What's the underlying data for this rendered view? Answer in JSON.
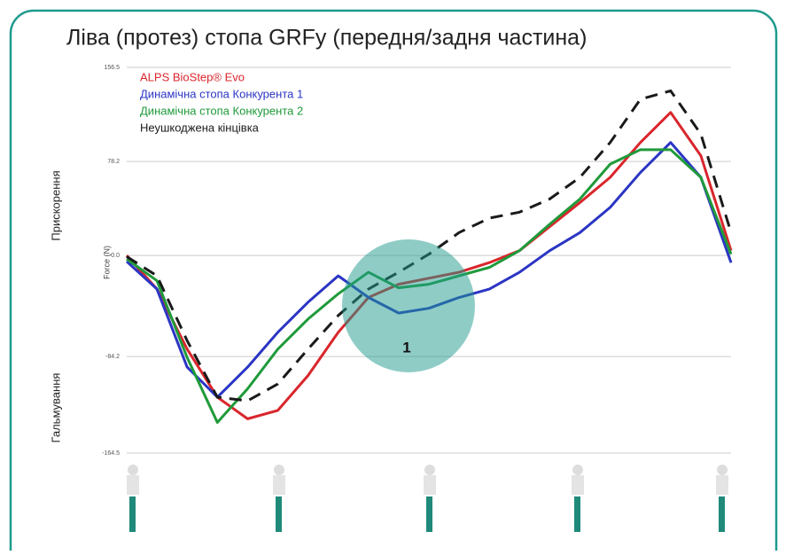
{
  "chart_data": {
    "type": "line",
    "title": "Ліва (протез) стопа GRFy (передня/задня частина)",
    "y_label": "Force (N)",
    "annotations": [
      "Прискорення",
      "Гальмування",
      "1"
    ],
    "x": [
      0,
      5,
      10,
      15,
      20,
      25,
      30,
      35,
      40,
      45,
      50,
      55,
      60,
      65,
      70,
      75,
      80,
      85,
      90,
      95,
      100
    ],
    "xlim": [
      0,
      100
    ],
    "ylim": [
      -164.5,
      156.5
    ],
    "yticks": [
      {
        "value": 156.5,
        "label": "156.5"
      },
      {
        "value": 78.2,
        "label": "78.2"
      },
      {
        "value": 0,
        "label": "0.0"
      },
      {
        "value": -84.2,
        "label": "-84.2"
      },
      {
        "value": -164.5,
        "label": "-164.5"
      }
    ],
    "grid": true,
    "legend": "upper left",
    "series": [
      {
        "name": "ALPS BioStep® Evo",
        "color": "#d9262c",
        "values": [
          0,
          -28,
          -78,
          -118,
          -136,
          -129,
          -100,
          -64,
          -35,
          -24,
          -19,
          -14,
          -6,
          4,
          24,
          44,
          65,
          94,
          119,
          83,
          4
        ]
      },
      {
        "name": "Динамічна стопа Конкурента 1",
        "color": "#2b35c4",
        "values": [
          -5,
          -28,
          -93,
          -118,
          -93,
          -64,
          -39,
          -17,
          -35,
          -48,
          -44,
          -35,
          -28,
          -14,
          4,
          19,
          40,
          69,
          94,
          65,
          -6
        ]
      },
      {
        "name": "Динамічна стопа Конкурента 2",
        "color": "#1f9a3a",
        "values": [
          -3,
          -21,
          -85,
          -139,
          -111,
          -78,
          -53,
          -32,
          -14,
          -27,
          -24,
          -17,
          -10,
          4,
          26,
          47,
          76,
          88,
          88,
          65,
          1
        ]
      },
      {
        "name": "Неушкоджена кінцівка",
        "color": "#1a1a1a",
        "dashed": true,
        "values": [
          -1,
          -17,
          -71,
          -118,
          -121,
          -107,
          -78,
          -50,
          -28,
          -14,
          1,
          19,
          31,
          36,
          47,
          65,
          94,
          130,
          137,
          101,
          19
        ]
      }
    ]
  }
}
